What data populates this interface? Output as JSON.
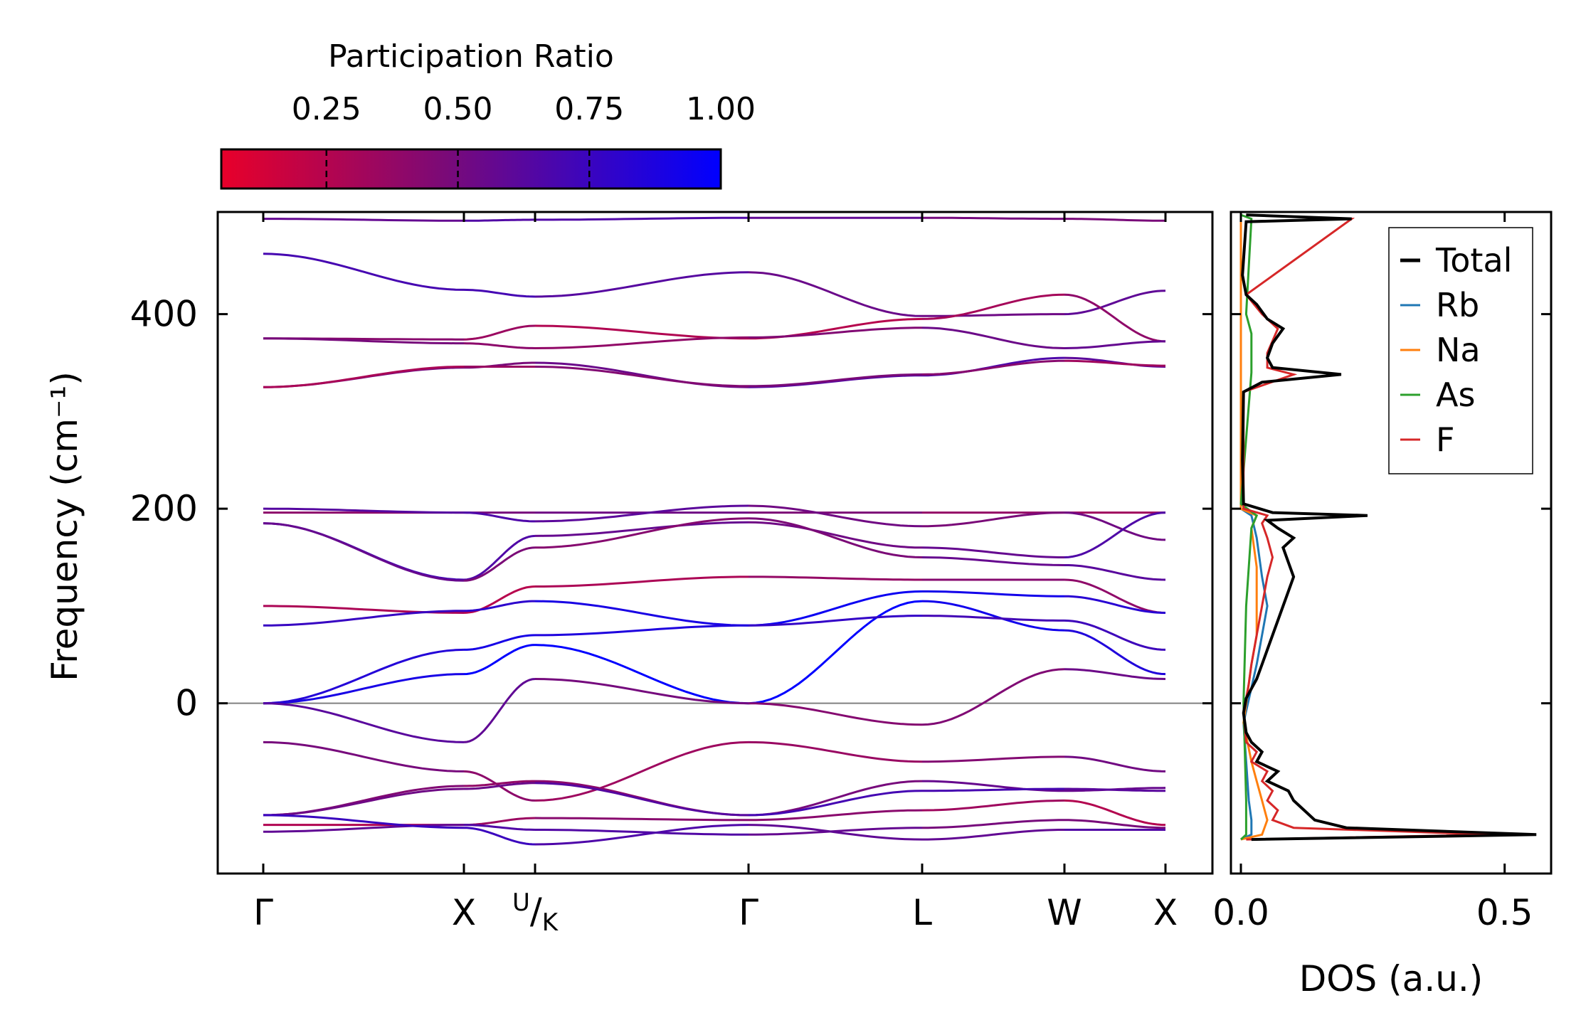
{
  "chart_data": [
    {
      "type": "line",
      "subtype": "phonon-band-structure",
      "ylabel": "Frequency (cm⁻¹)",
      "ylim": [
        -175,
        505
      ],
      "y_ticks": [
        "400",
        "200",
        "0"
      ],
      "k_path_labels": [
        "Γ",
        "X",
        "U/K",
        "Γ",
        "L",
        "W",
        "X"
      ],
      "colorbar": {
        "title": "Participation Ratio",
        "range": [
          0.05,
          1.0
        ],
        "tick_labels": [
          "0.25",
          "0.50",
          "0.75",
          "1.00"
        ],
        "color_low": "#e8002a",
        "color_mid": "#7a0a78",
        "color_high": "#0000ff"
      },
      "zero_line": "#808080"
    },
    {
      "type": "line",
      "subtype": "density-of-states",
      "xlabel": "DOS (a.u.)",
      "x_ticks": [
        "0.0",
        "0.5"
      ],
      "xlim": [
        0,
        0.58
      ],
      "legend": {
        "position": "top-right",
        "entries": [
          {
            "name": "Total",
            "color": "#000000"
          },
          {
            "name": "Rb",
            "color": "#1f77b4"
          },
          {
            "name": "Na",
            "color": "#ff7f0e"
          },
          {
            "name": "As",
            "color": "#2ca02c"
          },
          {
            "name": "F",
            "color": "#d62728"
          }
        ]
      },
      "series": {
        "Total": [
          [
            -140,
            0.02
          ],
          [
            -135,
            0.56
          ],
          [
            -128,
            0.2
          ],
          [
            -120,
            0.14
          ],
          [
            -110,
            0.12
          ],
          [
            -100,
            0.1
          ],
          [
            -90,
            0.09
          ],
          [
            -80,
            0.05
          ],
          [
            -70,
            0.07
          ],
          [
            -60,
            0.03
          ],
          [
            -50,
            0.04
          ],
          [
            -40,
            0.02
          ],
          [
            -30,
            0.01
          ],
          [
            -10,
            0.005
          ],
          [
            5,
            0.01
          ],
          [
            15,
            0.02
          ],
          [
            25,
            0.03
          ],
          [
            40,
            0.04
          ],
          [
            55,
            0.05
          ],
          [
            70,
            0.06
          ],
          [
            85,
            0.07
          ],
          [
            100,
            0.08
          ],
          [
            115,
            0.09
          ],
          [
            130,
            0.1
          ],
          [
            145,
            0.09
          ],
          [
            160,
            0.08
          ],
          [
            170,
            0.1
          ],
          [
            180,
            0.07
          ],
          [
            188,
            0.05
          ],
          [
            193,
            0.24
          ],
          [
            196,
            0.06
          ],
          [
            205,
            0.005
          ],
          [
            250,
            0.003
          ],
          [
            320,
            0.005
          ],
          [
            330,
            0.04
          ],
          [
            338,
            0.19
          ],
          [
            345,
            0.06
          ],
          [
            355,
            0.05
          ],
          [
            370,
            0.06
          ],
          [
            385,
            0.08
          ],
          [
            395,
            0.05
          ],
          [
            410,
            0.03
          ],
          [
            420,
            0.01
          ],
          [
            440,
            0.003
          ],
          [
            495,
            0.01
          ],
          [
            498,
            0.21
          ],
          [
            502,
            0.01
          ]
        ],
        "Rb": [
          [
            -140,
            0.0
          ],
          [
            -135,
            0.02
          ],
          [
            -120,
            0.02
          ],
          [
            -100,
            0.015
          ],
          [
            -60,
            0.01
          ],
          [
            -20,
            0.005
          ],
          [
            40,
            0.03
          ],
          [
            70,
            0.04
          ],
          [
            100,
            0.05
          ],
          [
            130,
            0.04
          ],
          [
            170,
            0.03
          ],
          [
            193,
            0.02
          ],
          [
            200,
            0.0
          ],
          [
            498,
            0.0
          ]
        ],
        "Na": [
          [
            -140,
            0.0
          ],
          [
            -135,
            0.04
          ],
          [
            -120,
            0.05
          ],
          [
            -100,
            0.04
          ],
          [
            -80,
            0.03
          ],
          [
            -60,
            0.02
          ],
          [
            -20,
            0.005
          ],
          [
            40,
            0.02
          ],
          [
            70,
            0.03
          ],
          [
            100,
            0.03
          ],
          [
            140,
            0.03
          ],
          [
            180,
            0.02
          ],
          [
            193,
            0.03
          ],
          [
            200,
            0.0
          ],
          [
            498,
            0.0
          ]
        ],
        "As": [
          [
            -140,
            0.0
          ],
          [
            -135,
            0.01
          ],
          [
            -100,
            0.01
          ],
          [
            0,
            0.005
          ],
          [
            100,
            0.01
          ],
          [
            180,
            0.02
          ],
          [
            193,
            0.03
          ],
          [
            205,
            0.0
          ],
          [
            340,
            0.02
          ],
          [
            380,
            0.02
          ],
          [
            400,
            0.01
          ],
          [
            498,
            0.02
          ],
          [
            502,
            0.0
          ]
        ],
        "F": [
          [
            -140,
            0.01
          ],
          [
            -135,
            0.48
          ],
          [
            -128,
            0.1
          ],
          [
            -120,
            0.06
          ],
          [
            -110,
            0.07
          ],
          [
            -100,
            0.05
          ],
          [
            -90,
            0.06
          ],
          [
            -80,
            0.04
          ],
          [
            -70,
            0.05
          ],
          [
            -60,
            0.02
          ],
          [
            -50,
            0.03
          ],
          [
            -40,
            0.01
          ],
          [
            -10,
            0.005
          ],
          [
            20,
            0.015
          ],
          [
            40,
            0.02
          ],
          [
            70,
            0.03
          ],
          [
            100,
            0.04
          ],
          [
            130,
            0.05
          ],
          [
            150,
            0.06
          ],
          [
            170,
            0.05
          ],
          [
            185,
            0.04
          ],
          [
            193,
            0.05
          ],
          [
            200,
            0.005
          ],
          [
            320,
            0.005
          ],
          [
            338,
            0.1
          ],
          [
            345,
            0.05
          ],
          [
            360,
            0.05
          ],
          [
            385,
            0.07
          ],
          [
            400,
            0.04
          ],
          [
            420,
            0.01
          ],
          [
            498,
            0.21
          ],
          [
            502,
            0.01
          ]
        ]
      }
    }
  ]
}
